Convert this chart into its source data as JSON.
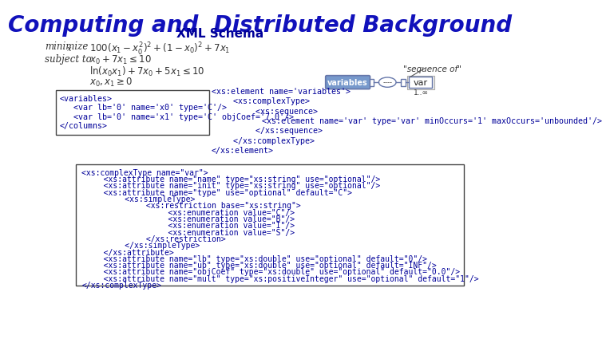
{
  "title": "Computing and  Distributed Background",
  "subtitle": "XML Schema",
  "title_color": "#1111BB",
  "subtitle_color": "#000099",
  "bg_color": "#FFFFFF",
  "xml_left_lines": [
    "<variables>",
    "   <var lb='0' name='x0' type='C'/>",
    "   <var lb='0' name='x1' type='C' objCoef='7.0'/>",
    "</columns>"
  ],
  "xml_mid_lines": [
    "<xs:element name='variables'>",
    "   <xs:complexType>",
    "      <xs:sequence>",
    "         <xs:element name='var' type='var' minOccurs='1' maxOccurs='unbounded'/>",
    "      </xs:sequence>",
    "   </xs:complexType>",
    "</xs:element>"
  ],
  "xml_bottom_lines": [
    "<xs:complexType name=\"var\">",
    "   <xs:attribute name=\"name\" type=\"xs:string\" use=\"optional\"/>",
    "   <xs:attribute name=\"init\" type=\"xs:string\" use=\"optional\"/>",
    "   <xs:attribute name=\"type\" use=\"optional\" default=\"C\">",
    "      <xs:simpleType>",
    "         <xs:restriction base=\"xs:string\">",
    "            <xs:enumeration value=\"C\"/>",
    "            <xs:enumeration value=\"B\"/>",
    "            <xs:enumeration value=\"I\"/>",
    "            <xs:enumeration value=\"S\"/>",
    "         </xs:restriction>",
    "      </xs:simpleType>",
    "   </xs:attribute>",
    "   <xs:attribute name=\"lb\" type=\"xs:double\" use=\"optional\" default=\"0\"/>",
    "   <xs:attribute name=\"ub\" type=\"xs:double\" use=\"optional\" default=\"INF\"/>",
    "   <xs:attribute name=\"objCoef\" type=\"xs:double\" use=\"optional\" default=\"0.0\"/>",
    "   <xs:attribute name=\"mult\" type=\"xs:positiveInteger\" use=\"optional\" default=\"1\"/>",
    "</xs:complexType>"
  ],
  "diagram_label": "\"sequence of\"",
  "diagram_box1": "variables",
  "diagram_box2": "----",
  "diagram_box3": "var",
  "diagram_range": "1..∞",
  "math_color": "#333333",
  "xml_blue": "#000099",
  "xml_red": "#CC0000"
}
